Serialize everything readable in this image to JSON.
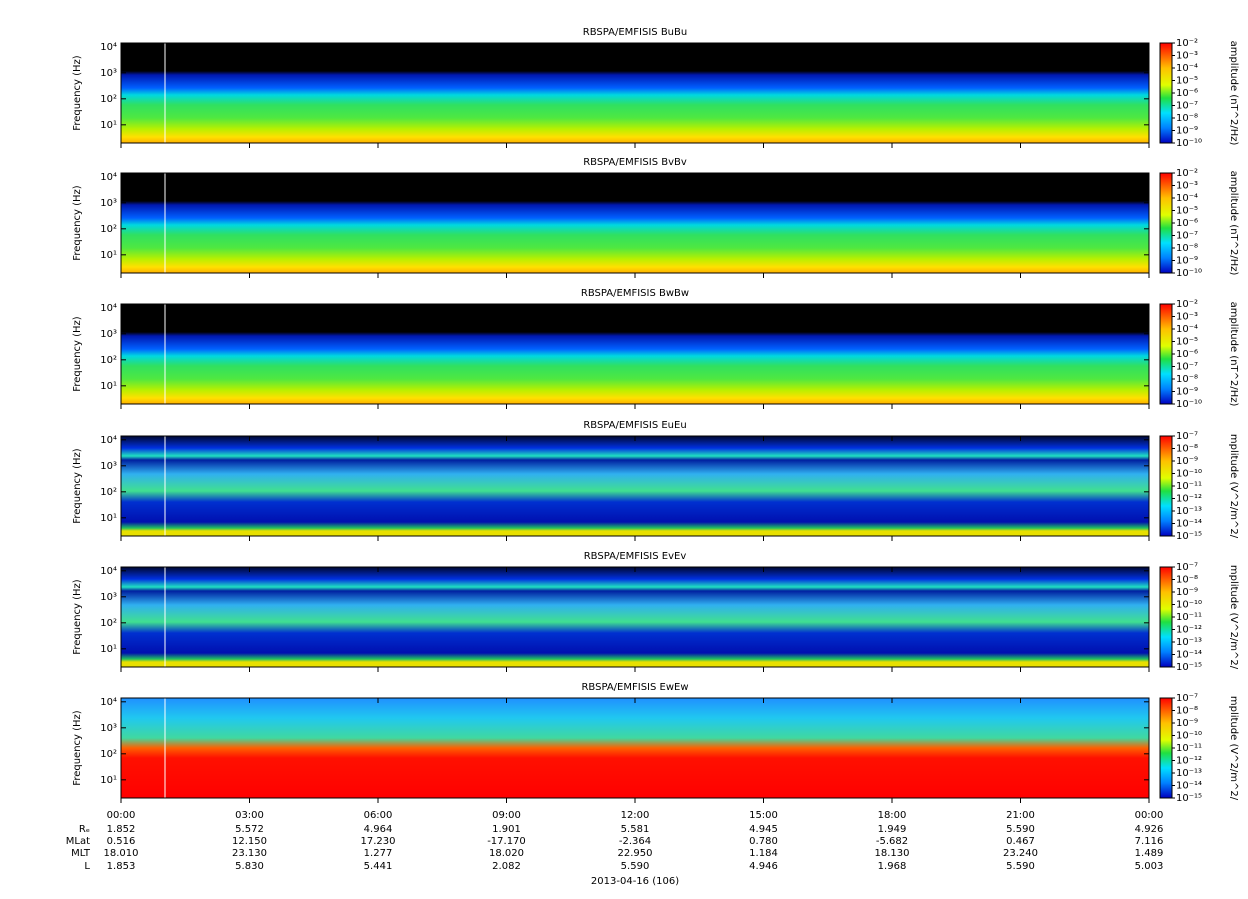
{
  "chart_data": [
    {
      "type": "spectrogram",
      "title": "RBSPA/EMFISIS  BuBu",
      "ylabel": "Frequency (Hz)",
      "log": true,
      "ylim": [
        2,
        14000
      ],
      "yticks": [
        {
          "value": 10,
          "label": "10¹"
        },
        {
          "value": 100,
          "label": "10²"
        },
        {
          "value": 1000,
          "label": "10³"
        },
        {
          "value": 10000,
          "label": "10⁴"
        }
      ],
      "colorbar": {
        "label": "amplitude (nT^2/Hz)",
        "log": true,
        "lim": [
          1e-10,
          0.01
        ],
        "ticks": [
          {
            "value": 0.01,
            "label": "10⁻²"
          },
          {
            "value": 0.001,
            "label": "10⁻³"
          },
          {
            "value": 0.0001,
            "label": "10⁻⁴"
          },
          {
            "value": 1e-05,
            "label": "10⁻⁵"
          },
          {
            "value": 1e-06,
            "label": "10⁻⁶"
          },
          {
            "value": 1e-07,
            "label": "10⁻⁷"
          },
          {
            "value": 1e-08,
            "label": "10⁻⁸"
          },
          {
            "value": 1e-09,
            "label": "10⁻⁹"
          },
          {
            "value": 1e-10,
            "label": "10⁻¹⁰"
          }
        ]
      }
    },
    {
      "type": "spectrogram",
      "title": "RBSPA/EMFISIS  BvBv",
      "ylabel": "Frequency (Hz)",
      "log": true,
      "ylim": [
        2,
        14000
      ],
      "yticks": [
        {
          "value": 10,
          "label": "10¹"
        },
        {
          "value": 100,
          "label": "10²"
        },
        {
          "value": 1000,
          "label": "10³"
        },
        {
          "value": 10000,
          "label": "10⁴"
        }
      ],
      "colorbar": {
        "label": "amplitude (nT^2/Hz)",
        "log": true,
        "lim": [
          1e-10,
          0.01
        ],
        "ticks": [
          {
            "value": 0.01,
            "label": "10⁻²"
          },
          {
            "value": 0.001,
            "label": "10⁻³"
          },
          {
            "value": 0.0001,
            "label": "10⁻⁴"
          },
          {
            "value": 1e-05,
            "label": "10⁻⁵"
          },
          {
            "value": 1e-06,
            "label": "10⁻⁶"
          },
          {
            "value": 1e-07,
            "label": "10⁻⁷"
          },
          {
            "value": 1e-08,
            "label": "10⁻⁸"
          },
          {
            "value": 1e-09,
            "label": "10⁻⁹"
          },
          {
            "value": 1e-10,
            "label": "10⁻¹⁰"
          }
        ]
      }
    },
    {
      "type": "spectrogram",
      "title": "RBSPA/EMFISIS  BwBw",
      "ylabel": "Frequency (Hz)",
      "log": true,
      "ylim": [
        2,
        14000
      ],
      "yticks": [
        {
          "value": 10,
          "label": "10¹"
        },
        {
          "value": 100,
          "label": "10²"
        },
        {
          "value": 1000,
          "label": "10³"
        },
        {
          "value": 10000,
          "label": "10⁴"
        }
      ],
      "colorbar": {
        "label": "amplitude (nT^2/Hz)",
        "log": true,
        "lim": [
          1e-10,
          0.01
        ],
        "ticks": [
          {
            "value": 0.01,
            "label": "10⁻²"
          },
          {
            "value": 0.001,
            "label": "10⁻³"
          },
          {
            "value": 0.0001,
            "label": "10⁻⁴"
          },
          {
            "value": 1e-05,
            "label": "10⁻⁵"
          },
          {
            "value": 1e-06,
            "label": "10⁻⁶"
          },
          {
            "value": 1e-07,
            "label": "10⁻⁷"
          },
          {
            "value": 1e-08,
            "label": "10⁻⁸"
          },
          {
            "value": 1e-09,
            "label": "10⁻⁹"
          },
          {
            "value": 1e-10,
            "label": "10⁻¹⁰"
          }
        ]
      }
    },
    {
      "type": "spectrogram",
      "title": "RBSPA/EMFISIS  EuEu",
      "ylabel": "Frequency (Hz)",
      "log": true,
      "ylim": [
        2,
        14000
      ],
      "yticks": [
        {
          "value": 10,
          "label": "10¹"
        },
        {
          "value": 100,
          "label": "10²"
        },
        {
          "value": 1000,
          "label": "10³"
        },
        {
          "value": 10000,
          "label": "10⁴"
        }
      ],
      "colorbar": {
        "label": "mplitude (V^2/m^2/",
        "log": true,
        "lim": [
          1e-15,
          1e-07
        ],
        "ticks": [
          {
            "value": 1e-07,
            "label": "10⁻⁷"
          },
          {
            "value": 1e-08,
            "label": "10⁻⁸"
          },
          {
            "value": 1e-09,
            "label": "10⁻⁹"
          },
          {
            "value": 1e-10,
            "label": "10⁻¹⁰"
          },
          {
            "value": 1e-11,
            "label": "10⁻¹¹"
          },
          {
            "value": 1e-12,
            "label": "10⁻¹²"
          },
          {
            "value": 1e-13,
            "label": "10⁻¹³"
          },
          {
            "value": 1e-14,
            "label": "10⁻¹⁴"
          },
          {
            "value": 1e-15,
            "label": "10⁻¹⁵"
          }
        ]
      }
    },
    {
      "type": "spectrogram",
      "title": "RBSPA/EMFISIS  EvEv",
      "ylabel": "Frequency (Hz)",
      "log": true,
      "ylim": [
        2,
        14000
      ],
      "yticks": [
        {
          "value": 10,
          "label": "10¹"
        },
        {
          "value": 100,
          "label": "10²"
        },
        {
          "value": 1000,
          "label": "10³"
        },
        {
          "value": 10000,
          "label": "10⁴"
        }
      ],
      "colorbar": {
        "label": "mplitude (V^2/m^2/",
        "log": true,
        "lim": [
          1e-15,
          1e-07
        ],
        "ticks": [
          {
            "value": 1e-07,
            "label": "10⁻⁷"
          },
          {
            "value": 1e-08,
            "label": "10⁻⁸"
          },
          {
            "value": 1e-09,
            "label": "10⁻⁹"
          },
          {
            "value": 1e-10,
            "label": "10⁻¹⁰"
          },
          {
            "value": 1e-11,
            "label": "10⁻¹¹"
          },
          {
            "value": 1e-12,
            "label": "10⁻¹²"
          },
          {
            "value": 1e-13,
            "label": "10⁻¹³"
          },
          {
            "value": 1e-14,
            "label": "10⁻¹⁴"
          },
          {
            "value": 1e-15,
            "label": "10⁻¹⁵"
          }
        ]
      }
    },
    {
      "type": "spectrogram",
      "title": "RBSPA/EMFISIS  EwEw",
      "ylabel": "Frequency (Hz)",
      "log": true,
      "ylim": [
        2,
        14000
      ],
      "yticks": [
        {
          "value": 10,
          "label": "10¹"
        },
        {
          "value": 100,
          "label": "10²"
        },
        {
          "value": 1000,
          "label": "10³"
        },
        {
          "value": 10000,
          "label": "10⁴"
        }
      ],
      "colorbar": {
        "label": "mplitude (V^2/m^2/",
        "log": true,
        "lim": [
          1e-15,
          1e-07
        ],
        "ticks": [
          {
            "value": 1e-07,
            "label": "10⁻⁷"
          },
          {
            "value": 1e-08,
            "label": "10⁻⁸"
          },
          {
            "value": 1e-09,
            "label": "10⁻⁹"
          },
          {
            "value": 1e-10,
            "label": "10⁻¹⁰"
          },
          {
            "value": 1e-11,
            "label": "10⁻¹¹"
          },
          {
            "value": 1e-12,
            "label": "10⁻¹²"
          },
          {
            "value": 1e-13,
            "label": "10⁻¹³"
          },
          {
            "value": 1e-14,
            "label": "10⁻¹⁴"
          },
          {
            "value": 1e-15,
            "label": "10⁻¹⁵"
          }
        ]
      },
      "xlim": [
        0,
        24
      ],
      "xticks": [
        {
          "value": 0,
          "label": "00:00"
        },
        {
          "value": 3,
          "label": "03:00"
        },
        {
          "value": 6,
          "label": "06:00"
        },
        {
          "value": 9,
          "label": "09:00"
        },
        {
          "value": 12,
          "label": "12:00"
        },
        {
          "value": 15,
          "label": "15:00"
        },
        {
          "value": 18,
          "label": "18:00"
        },
        {
          "value": 21,
          "label": "21:00"
        },
        {
          "value": 24,
          "label": "00:00"
        }
      ]
    }
  ],
  "ephemeris": {
    "rows": [
      {
        "label": "Rₑ",
        "values": [
          "1.852",
          "5.572",
          "4.964",
          "1.901",
          "5.581",
          "4.945",
          "1.949",
          "5.590",
          "4.926"
        ]
      },
      {
        "label": "MLat",
        "values": [
          "0.516",
          "12.150",
          "17.230",
          "-17.170",
          "-2.364",
          "0.780",
          "-5.682",
          "0.467",
          "7.116"
        ]
      },
      {
        "label": "MLT",
        "values": [
          "18.010",
          "23.130",
          "1.277",
          "18.020",
          "22.950",
          "1.184",
          "18.130",
          "23.240",
          "1.489"
        ]
      },
      {
        "label": "L",
        "values": [
          "1.853",
          "5.830",
          "5.441",
          "2.082",
          "5.590",
          "4.946",
          "1.968",
          "5.590",
          "5.003"
        ]
      }
    ]
  },
  "date": "2013-04-16 (106)"
}
